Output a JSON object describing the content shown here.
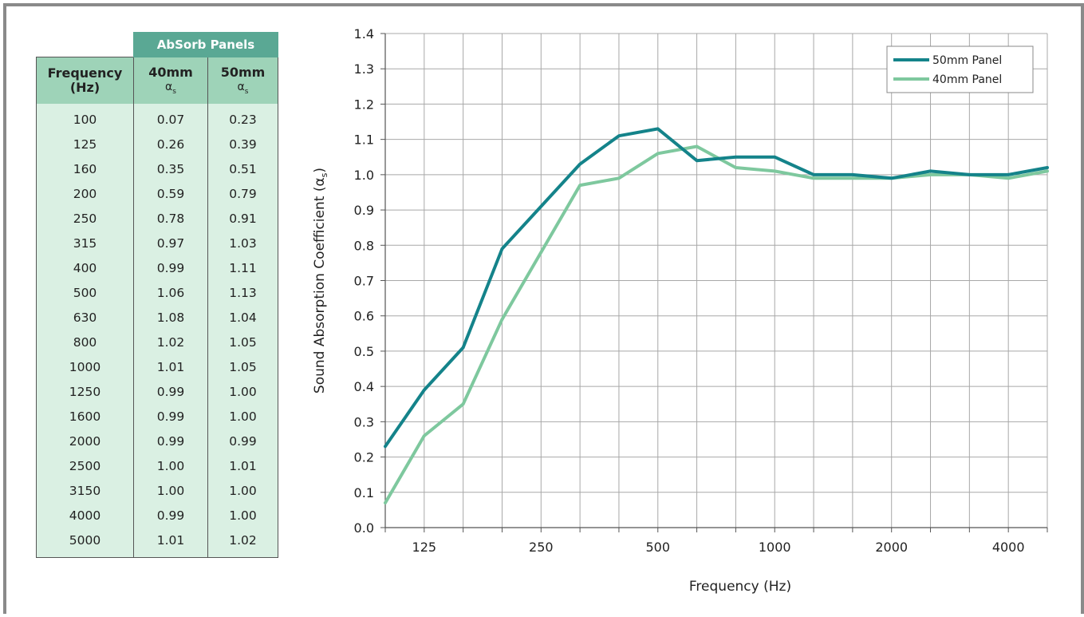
{
  "table": {
    "group_header": "AbSorb Panels",
    "col_freq": "Frequency (Hz)",
    "col_40": "40mm",
    "col_50": "50mm",
    "alpha_symbol": "α",
    "alpha_sub": "s",
    "rows": [
      {
        "freq": "100",
        "v40": "0.07",
        "v50": "0.23"
      },
      {
        "freq": "125",
        "v40": "0.26",
        "v50": "0.39"
      },
      {
        "freq": "160",
        "v40": "0.35",
        "v50": "0.51"
      },
      {
        "freq": "200",
        "v40": "0.59",
        "v50": "0.79"
      },
      {
        "freq": "250",
        "v40": "0.78",
        "v50": "0.91"
      },
      {
        "freq": "315",
        "v40": "0.97",
        "v50": "1.03"
      },
      {
        "freq": "400",
        "v40": "0.99",
        "v50": "1.11"
      },
      {
        "freq": "500",
        "v40": "1.06",
        "v50": "1.13"
      },
      {
        "freq": "630",
        "v40": "1.08",
        "v50": "1.04"
      },
      {
        "freq": "800",
        "v40": "1.02",
        "v50": "1.05"
      },
      {
        "freq": "1000",
        "v40": "1.01",
        "v50": "1.05"
      },
      {
        "freq": "1250",
        "v40": "0.99",
        "v50": "1.00"
      },
      {
        "freq": "1600",
        "v40": "0.99",
        "v50": "1.00"
      },
      {
        "freq": "2000",
        "v40": "0.99",
        "v50": "0.99"
      },
      {
        "freq": "2500",
        "v40": "1.00",
        "v50": "1.01"
      },
      {
        "freq": "3150",
        "v40": "1.00",
        "v50": "1.00"
      },
      {
        "freq": "4000",
        "v40": "0.99",
        "v50": "1.00"
      },
      {
        "freq": "5000",
        "v40": "1.01",
        "v50": "1.02"
      }
    ]
  },
  "chart_data": {
    "type": "line",
    "title": "",
    "xlabel": "Frequency (Hz)",
    "ylabel": "Sound Absorption Coefficient (α",
    "ylabel_sub": "s",
    "x": [
      100,
      125,
      160,
      200,
      250,
      315,
      400,
      500,
      630,
      800,
      1000,
      1250,
      1600,
      2000,
      2500,
      3150,
      4000,
      5000
    ],
    "xtick_values": [
      125,
      250,
      500,
      1000,
      2000,
      4000
    ],
    "xtick_labels": [
      "125",
      "250",
      "500",
      "1000",
      "2000",
      "4000"
    ],
    "ylim": [
      0,
      1.4
    ],
    "yticks": [
      "0.0",
      "0.1",
      "0.2",
      "0.3",
      "0.4",
      "0.5",
      "0.6",
      "0.7",
      "0.8",
      "0.9",
      "1.0",
      "1.1",
      "1.2",
      "1.3",
      "1.4"
    ],
    "grid": true,
    "legend_position": "top-right",
    "series": [
      {
        "name": "50mm Panel",
        "color": "#14838a",
        "values": [
          0.23,
          0.39,
          0.51,
          0.79,
          0.91,
          1.03,
          1.11,
          1.13,
          1.04,
          1.05,
          1.05,
          1.0,
          1.0,
          0.99,
          1.01,
          1.0,
          1.0,
          1.02
        ]
      },
      {
        "name": "40mm Panel",
        "color": "#7ec89e",
        "values": [
          0.07,
          0.26,
          0.35,
          0.59,
          0.78,
          0.97,
          0.99,
          1.06,
          1.08,
          1.02,
          1.01,
          0.99,
          0.99,
          0.99,
          1.0,
          1.0,
          0.99,
          1.01
        ]
      }
    ]
  }
}
